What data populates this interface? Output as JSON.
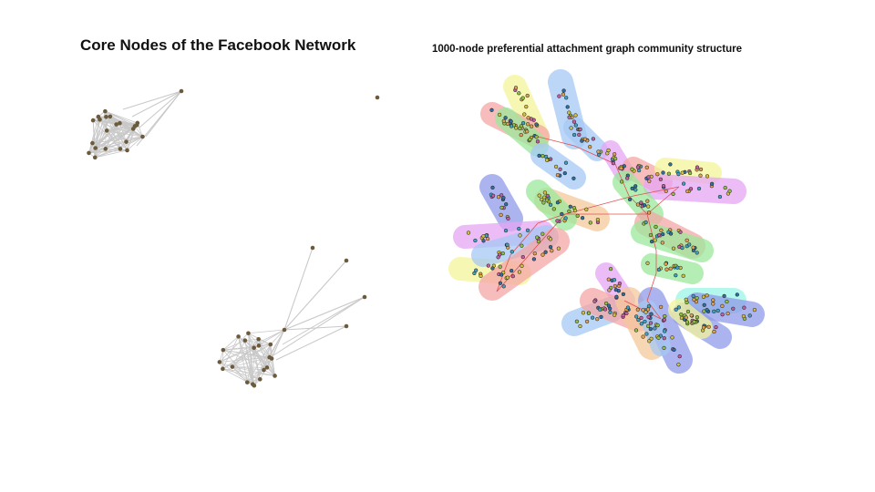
{
  "left_panel": {
    "title": "Core Nodes of the Facebook Network",
    "node_color": "#6b5a3c",
    "edge_color": "#c8c8c8"
  },
  "right_panel": {
    "title": "1000-node preferential attachment graph community structure",
    "community_colors": [
      "#f4a6a6",
      "#9be89b",
      "#a6c8f4",
      "#e6a6f4",
      "#f4f49b",
      "#f4c89b",
      "#9bf4e6",
      "#8f9be8"
    ],
    "node_fill_colors": [
      "#e0a050",
      "#40a0c0",
      "#c060a0",
      "#90c040",
      "#d0c040",
      "#3070a0"
    ],
    "edge_color": "#e05050"
  }
}
